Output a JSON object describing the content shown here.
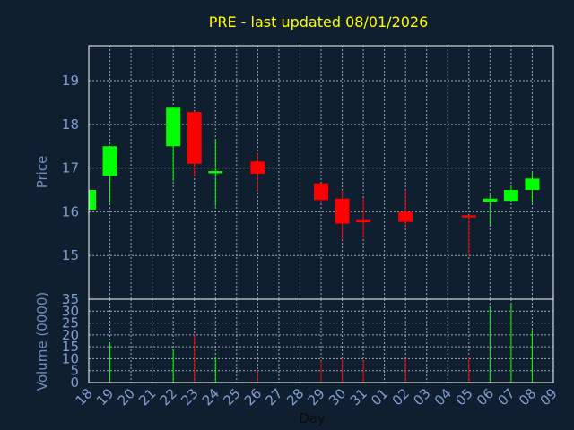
{
  "chart_data": {
    "type": "candlestick",
    "title": "PRE - last updated 08/01/2026",
    "xlabel": "Day",
    "ylabel": "Price",
    "volume_label": "Volume (0000)",
    "categories": [
      "18",
      "19",
      "20",
      "21",
      "22",
      "23",
      "24",
      "25",
      "26",
      "27",
      "28",
      "29",
      "30",
      "31",
      "01",
      "02",
      "03",
      "04",
      "05",
      "06",
      "07",
      "08",
      "09"
    ],
    "price_ylim": [
      14.0,
      19.8
    ],
    "price_ticks": [
      15,
      16,
      17,
      18,
      19
    ],
    "volume_ylim": [
      0,
      35
    ],
    "volume_ticks": [
      0,
      5,
      10,
      15,
      20,
      25,
      30,
      35
    ],
    "grid": true,
    "up_color": "#00ff00",
    "down_color": "#ff0000",
    "candles": [
      {
        "day": "18",
        "open": 16.05,
        "high": 16.5,
        "low": 16.0,
        "close": 16.5,
        "volume": 0
      },
      {
        "day": "19",
        "open": 16.82,
        "high": 17.5,
        "low": 16.2,
        "close": 17.5,
        "volume": 17
      },
      {
        "day": "22",
        "open": 17.5,
        "high": 18.4,
        "low": 16.7,
        "close": 18.38,
        "volume": 14
      },
      {
        "day": "23",
        "open": 18.28,
        "high": 18.3,
        "low": 16.8,
        "close": 17.1,
        "volume": 20
      },
      {
        "day": "24",
        "open": 16.88,
        "high": 17.65,
        "low": 16.12,
        "close": 16.93,
        "volume": 11
      },
      {
        "day": "26",
        "open": 17.15,
        "high": 17.35,
        "low": 16.45,
        "close": 16.87,
        "volume": 5
      },
      {
        "day": "29",
        "open": 16.65,
        "high": 16.65,
        "low": 16.2,
        "close": 16.27,
        "volume": 9
      },
      {
        "day": "30",
        "open": 16.3,
        "high": 16.5,
        "low": 15.35,
        "close": 15.73,
        "volume": 10
      },
      {
        "day": "31",
        "open": 15.81,
        "high": 16.32,
        "low": 15.4,
        "close": 15.76,
        "volume": 9
      },
      {
        "day": "02",
        "open": 16.0,
        "high": 16.5,
        "low": 15.65,
        "close": 15.77,
        "volume": 10
      },
      {
        "day": "05",
        "open": 15.92,
        "high": 15.92,
        "low": 15.0,
        "close": 15.87,
        "volume": 11
      },
      {
        "day": "06",
        "open": 16.23,
        "high": 16.4,
        "low": 15.7,
        "close": 16.3,
        "volume": 32
      },
      {
        "day": "07",
        "open": 16.25,
        "high": 16.6,
        "low": 16.25,
        "close": 16.5,
        "volume": 33
      },
      {
        "day": "08",
        "open": 16.5,
        "high": 16.9,
        "low": 16.2,
        "close": 16.76,
        "volume": 22
      }
    ]
  }
}
